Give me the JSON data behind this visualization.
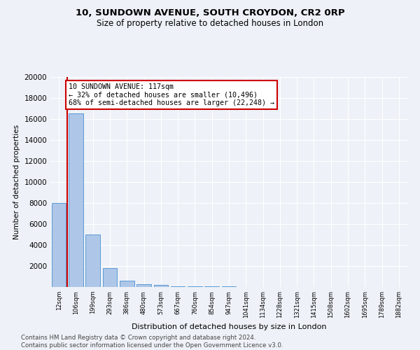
{
  "title1": "10, SUNDOWN AVENUE, SOUTH CROYDON, CR2 0RP",
  "title2": "Size of property relative to detached houses in London",
  "xlabel": "Distribution of detached houses by size in London",
  "ylabel": "Number of detached properties",
  "categories": [
    "12sqm",
    "106sqm",
    "199sqm",
    "293sqm",
    "386sqm",
    "480sqm",
    "573sqm",
    "667sqm",
    "760sqm",
    "854sqm",
    "947sqm",
    "1041sqm",
    "1134sqm",
    "1228sqm",
    "1321sqm",
    "1415sqm",
    "1508sqm",
    "1602sqm",
    "1695sqm",
    "1789sqm",
    "1882sqm"
  ],
  "bar_values": [
    8000,
    16500,
    5000,
    1800,
    600,
    300,
    200,
    100,
    100,
    80,
    40,
    30,
    20,
    15,
    10,
    8,
    6,
    5,
    4,
    3,
    2
  ],
  "bar_color": "#aec6e8",
  "bar_edge_color": "#5b9bd5",
  "vline_x": 0.5,
  "vline_color": "#cc0000",
  "annotation_text": "10 SUNDOWN AVENUE: 117sqm\n← 32% of detached houses are smaller (10,496)\n68% of semi-detached houses are larger (22,248) →",
  "annotation_box_color": "#ffffff",
  "annotation_box_edge": "#cc0000",
  "ylim": [
    0,
    20000
  ],
  "yticks": [
    0,
    2000,
    4000,
    6000,
    8000,
    10000,
    12000,
    14000,
    16000,
    18000,
    20000
  ],
  "footer": "Contains HM Land Registry data © Crown copyright and database right 2024.\nContains public sector information licensed under the Open Government Licence v3.0.",
  "bg_color": "#eef2f8",
  "grid_color": "#ffffff",
  "title_fontsize": 9.5,
  "subtitle_fontsize": 8.5
}
